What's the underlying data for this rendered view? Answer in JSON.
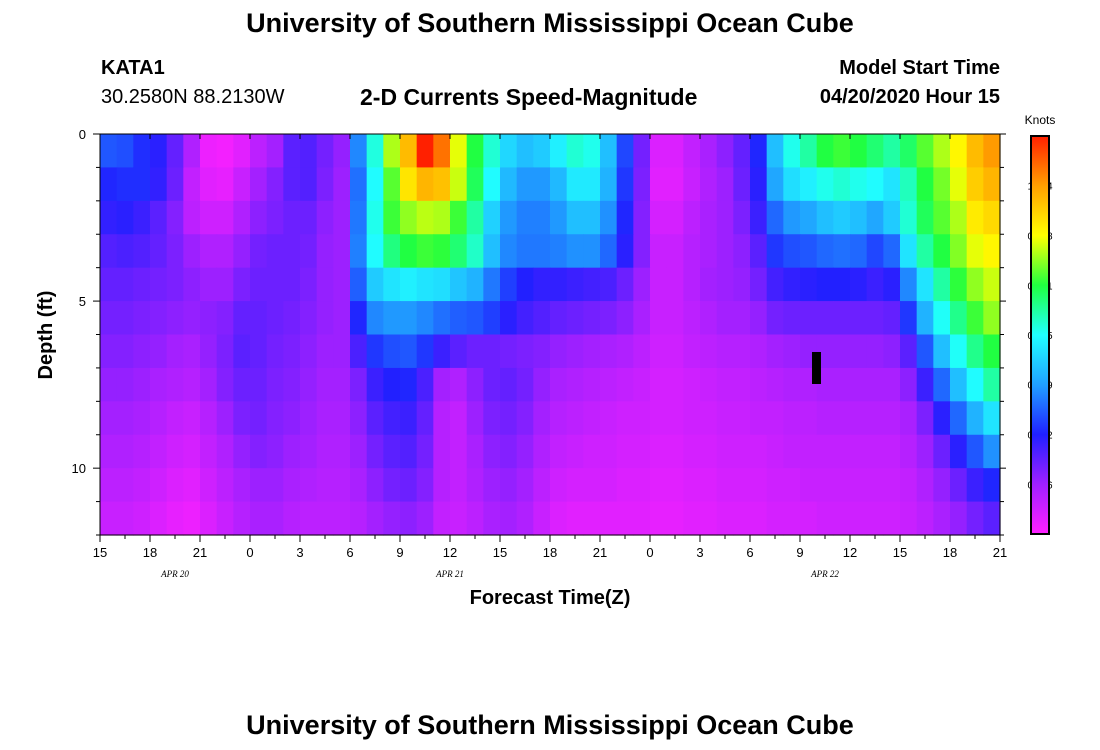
{
  "header": {
    "title": "University of Southern Mississippi Ocean Cube",
    "station": "KATA1",
    "coords": "30.2580N 88.2130W",
    "subtitle": "2-D Currents Speed-Magnitude",
    "model_label": "Model Start Time",
    "model_time": "04/20/2020 Hour 15"
  },
  "footer": {
    "title": "University of Southern Mississippi Ocean Cube"
  },
  "chart_data": {
    "type": "heatmap",
    "title": "2-D Currents Speed-Magnitude",
    "xlabel": "Forecast Time(Z)",
    "ylabel": "Depth (ft)",
    "x_ticks": [
      "15",
      "18",
      "21",
      "0",
      "3",
      "6",
      "9",
      "12",
      "15",
      "18",
      "21",
      "0",
      "3",
      "6",
      "9",
      "12",
      "15",
      "18",
      "21"
    ],
    "date_labels": [
      "APR 20",
      "APR 21",
      "APR 22"
    ],
    "y_ticks": [
      "0",
      "5",
      "10"
    ],
    "y_range": [
      0,
      12
    ],
    "colorbar": {
      "unit": "Knots",
      "ticks": [
        "1.094",
        "0.938",
        "0.781",
        "0.625",
        "0.469",
        "0.312",
        "0.156"
      ],
      "range": [
        0,
        1.25
      ],
      "colors": [
        "#ff20ff",
        "#a020ff",
        "#2020ff",
        "#20a0ff",
        "#20ffff",
        "#20ff40",
        "#ffff00",
        "#ffa000",
        "#ff2000"
      ]
    },
    "time_bins_hours": 54,
    "depth_bins_ft": [
      0.5,
      1.5,
      2.5,
      3.5,
      4.5,
      5.5,
      6.5,
      7.5,
      8.5,
      9.5,
      10.5,
      11.5
    ],
    "values_knots": [
      [
        0.38,
        0.37,
        0.33,
        0.3,
        0.23,
        0.13,
        0.03,
        0.02,
        0.05,
        0.11,
        0.15,
        0.24,
        0.25,
        0.21,
        0.17,
        0.44,
        0.65,
        0.88,
        1.05,
        1.25,
        1.15,
        0.92,
        0.78,
        0.66,
        0.56,
        0.52,
        0.54,
        0.6,
        0.66,
        0.64,
        0.52,
        0.36,
        0.21,
        0.06,
        0.06,
        0.1,
        0.14,
        0.18,
        0.23,
        0.32,
        0.52,
        0.64,
        0.7,
        0.78,
        0.8,
        0.78,
        0.74,
        0.7,
        0.75,
        0.82,
        0.88,
        0.95,
        1.05,
        1.1
      ],
      [
        0.32,
        0.33,
        0.33,
        0.29,
        0.22,
        0.1,
        0.05,
        0.04,
        0.09,
        0.15,
        0.19,
        0.24,
        0.25,
        0.2,
        0.16,
        0.41,
        0.62,
        0.82,
        0.98,
        1.06,
        1.04,
        0.9,
        0.76,
        0.62,
        0.51,
        0.46,
        0.46,
        0.51,
        0.59,
        0.59,
        0.5,
        0.34,
        0.2,
        0.05,
        0.05,
        0.09,
        0.13,
        0.16,
        0.22,
        0.3,
        0.48,
        0.57,
        0.6,
        0.64,
        0.66,
        0.64,
        0.62,
        0.58,
        0.68,
        0.78,
        0.84,
        0.92,
        1.02,
        1.06
      ],
      [
        0.29,
        0.3,
        0.28,
        0.24,
        0.19,
        0.11,
        0.08,
        0.08,
        0.13,
        0.18,
        0.2,
        0.22,
        0.22,
        0.18,
        0.16,
        0.42,
        0.64,
        0.8,
        0.86,
        0.89,
        0.88,
        0.8,
        0.7,
        0.55,
        0.46,
        0.43,
        0.43,
        0.46,
        0.52,
        0.52,
        0.45,
        0.32,
        0.19,
        0.07,
        0.07,
        0.11,
        0.14,
        0.16,
        0.2,
        0.28,
        0.4,
        0.46,
        0.48,
        0.52,
        0.54,
        0.52,
        0.48,
        0.54,
        0.66,
        0.76,
        0.82,
        0.88,
        0.97,
        1.0
      ],
      [
        0.25,
        0.26,
        0.25,
        0.23,
        0.2,
        0.16,
        0.13,
        0.13,
        0.17,
        0.21,
        0.22,
        0.22,
        0.21,
        0.17,
        0.16,
        0.43,
        0.62,
        0.73,
        0.78,
        0.8,
        0.79,
        0.74,
        0.67,
        0.52,
        0.44,
        0.42,
        0.42,
        0.43,
        0.45,
        0.45,
        0.4,
        0.3,
        0.19,
        0.09,
        0.09,
        0.12,
        0.14,
        0.16,
        0.18,
        0.24,
        0.34,
        0.37,
        0.38,
        0.4,
        0.41,
        0.4,
        0.36,
        0.4,
        0.58,
        0.7,
        0.78,
        0.85,
        0.92,
        0.95
      ],
      [
        0.23,
        0.23,
        0.22,
        0.21,
        0.2,
        0.18,
        0.16,
        0.16,
        0.2,
        0.22,
        0.22,
        0.22,
        0.2,
        0.17,
        0.16,
        0.39,
        0.54,
        0.58,
        0.6,
        0.58,
        0.57,
        0.53,
        0.5,
        0.42,
        0.35,
        0.31,
        0.29,
        0.29,
        0.28,
        0.27,
        0.26,
        0.22,
        0.16,
        0.09,
        0.09,
        0.12,
        0.15,
        0.16,
        0.17,
        0.21,
        0.27,
        0.29,
        0.3,
        0.31,
        0.31,
        0.3,
        0.28,
        0.3,
        0.44,
        0.58,
        0.7,
        0.79,
        0.86,
        0.9
      ],
      [
        0.21,
        0.21,
        0.2,
        0.19,
        0.18,
        0.17,
        0.18,
        0.19,
        0.23,
        0.23,
        0.22,
        0.21,
        0.19,
        0.17,
        0.16,
        0.32,
        0.44,
        0.46,
        0.46,
        0.44,
        0.41,
        0.39,
        0.38,
        0.35,
        0.3,
        0.27,
        0.25,
        0.23,
        0.22,
        0.21,
        0.2,
        0.18,
        0.14,
        0.09,
        0.09,
        0.11,
        0.13,
        0.15,
        0.15,
        0.17,
        0.21,
        0.22,
        0.22,
        0.22,
        0.22,
        0.22,
        0.22,
        0.23,
        0.34,
        0.5,
        0.63,
        0.72,
        0.8,
        0.86
      ],
      [
        0.19,
        0.19,
        0.18,
        0.17,
        0.15,
        0.14,
        0.17,
        0.2,
        0.24,
        0.23,
        0.21,
        0.2,
        0.18,
        0.16,
        0.16,
        0.26,
        0.34,
        0.37,
        0.38,
        0.34,
        0.28,
        0.24,
        0.22,
        0.22,
        0.21,
        0.2,
        0.19,
        0.17,
        0.16,
        0.15,
        0.14,
        0.13,
        0.11,
        0.08,
        0.08,
        0.1,
        0.11,
        0.12,
        0.12,
        0.13,
        0.15,
        0.16,
        0.17,
        0.17,
        0.17,
        0.17,
        0.17,
        0.18,
        0.24,
        0.38,
        0.52,
        0.63,
        0.72,
        0.78
      ],
      [
        0.17,
        0.17,
        0.16,
        0.14,
        0.13,
        0.12,
        0.15,
        0.19,
        0.22,
        0.22,
        0.2,
        0.19,
        0.17,
        0.15,
        0.15,
        0.2,
        0.28,
        0.31,
        0.32,
        0.26,
        0.15,
        0.13,
        0.18,
        0.22,
        0.23,
        0.21,
        0.17,
        0.14,
        0.13,
        0.12,
        0.11,
        0.1,
        0.09,
        0.07,
        0.07,
        0.08,
        0.09,
        0.1,
        0.1,
        0.11,
        0.12,
        0.13,
        0.13,
        0.14,
        0.14,
        0.14,
        0.14,
        0.14,
        0.18,
        0.28,
        0.4,
        0.52,
        0.62,
        0.7
      ],
      [
        0.15,
        0.15,
        0.14,
        0.12,
        0.1,
        0.09,
        0.12,
        0.16,
        0.2,
        0.21,
        0.19,
        0.18,
        0.16,
        0.14,
        0.14,
        0.18,
        0.24,
        0.27,
        0.28,
        0.23,
        0.12,
        0.1,
        0.16,
        0.2,
        0.21,
        0.19,
        0.15,
        0.12,
        0.11,
        0.1,
        0.09,
        0.08,
        0.08,
        0.07,
        0.07,
        0.08,
        0.08,
        0.09,
        0.09,
        0.1,
        0.1,
        0.11,
        0.11,
        0.12,
        0.12,
        0.12,
        0.12,
        0.12,
        0.14,
        0.2,
        0.3,
        0.4,
        0.5,
        0.58
      ],
      [
        0.13,
        0.13,
        0.12,
        0.1,
        0.08,
        0.07,
        0.1,
        0.13,
        0.17,
        0.19,
        0.18,
        0.16,
        0.15,
        0.13,
        0.13,
        0.16,
        0.21,
        0.24,
        0.25,
        0.21,
        0.12,
        0.1,
        0.14,
        0.18,
        0.19,
        0.17,
        0.13,
        0.1,
        0.09,
        0.08,
        0.08,
        0.07,
        0.07,
        0.06,
        0.06,
        0.07,
        0.07,
        0.08,
        0.08,
        0.08,
        0.09,
        0.1,
        0.1,
        0.1,
        0.1,
        0.1,
        0.1,
        0.1,
        0.12,
        0.16,
        0.22,
        0.3,
        0.38,
        0.45
      ],
      [
        0.11,
        0.11,
        0.1,
        0.08,
        0.06,
        0.05,
        0.08,
        0.11,
        0.14,
        0.16,
        0.16,
        0.14,
        0.13,
        0.12,
        0.12,
        0.14,
        0.18,
        0.21,
        0.22,
        0.19,
        0.12,
        0.1,
        0.13,
        0.16,
        0.17,
        0.15,
        0.11,
        0.08,
        0.07,
        0.07,
        0.07,
        0.06,
        0.06,
        0.05,
        0.05,
        0.06,
        0.06,
        0.07,
        0.07,
        0.07,
        0.08,
        0.08,
        0.09,
        0.09,
        0.09,
        0.09,
        0.09,
        0.09,
        0.1,
        0.13,
        0.17,
        0.22,
        0.28,
        0.32
      ],
      [
        0.09,
        0.09,
        0.08,
        0.06,
        0.04,
        0.03,
        0.06,
        0.09,
        0.12,
        0.14,
        0.14,
        0.12,
        0.11,
        0.11,
        0.11,
        0.12,
        0.15,
        0.17,
        0.18,
        0.16,
        0.1,
        0.09,
        0.11,
        0.14,
        0.15,
        0.13,
        0.09,
        0.06,
        0.05,
        0.05,
        0.05,
        0.05,
        0.05,
        0.04,
        0.04,
        0.05,
        0.05,
        0.06,
        0.06,
        0.06,
        0.07,
        0.07,
        0.07,
        0.08,
        0.08,
        0.08,
        0.08,
        0.08,
        0.09,
        0.11,
        0.14,
        0.17,
        0.21,
        0.24
      ]
    ],
    "grid": false,
    "legend": "right"
  }
}
